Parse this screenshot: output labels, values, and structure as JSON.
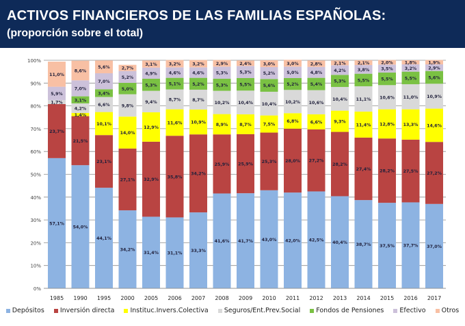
{
  "header": {
    "title": "ACTIVOS FINANCIEROS DE LAS FAMILIAS ESPAÑOLAS:",
    "subtitle": "(proporción sobre el total)"
  },
  "chart_data": {
    "type": "bar",
    "stacked": true,
    "normalized": true,
    "title": "ACTIVOS FINANCIEROS DE LAS FAMILIAS ESPAÑOLAS:",
    "subtitle": "(proporción sobre el total)",
    "xlabel": "",
    "ylabel": "",
    "ylim": [
      0,
      100
    ],
    "yticks": [
      "0%",
      "10%",
      "20%",
      "30%",
      "40%",
      "50%",
      "60%",
      "70%",
      "80%",
      "90%",
      "100%"
    ],
    "grid": true,
    "legend_position": "bottom",
    "categories": [
      "1985",
      "1990",
      "1995",
      "2000",
      "2005",
      "2006",
      "2007",
      "2008",
      "2009",
      "2010",
      "2011",
      "2012",
      "2013",
      "2014",
      "2015",
      "2016",
      "2017"
    ],
    "series": [
      {
        "name": "Depósitos",
        "color": "#8db3e2",
        "values": [
          57.1,
          54.0,
          44.1,
          34.2,
          31.4,
          31.1,
          33.3,
          41.6,
          41.7,
          43.0,
          42.0,
          42.5,
          40.4,
          38.7,
          37.5,
          37.7,
          37.0
        ]
      },
      {
        "name": "Inversión directa",
        "color": "#b94442",
        "values": [
          23.7,
          21.5,
          23.1,
          27.1,
          32.9,
          35.8,
          34.2,
          25.9,
          25.9,
          25.3,
          28.0,
          27.2,
          28.2,
          27.4,
          28.2,
          27.5,
          27.2
        ]
      },
      {
        "name": "Instituc.Invers.Colectiva",
        "color": "#ffff00",
        "values": [
          0,
          1.4,
          10.1,
          14.0,
          12.9,
          11.6,
          10.9,
          8.9,
          8.7,
          7.5,
          6.8,
          6.6,
          9.3,
          11.4,
          12.8,
          13.3,
          14.6
        ]
      },
      {
        "name": "Seguros/Ent.Prev.Social",
        "color": "#d9d9d9",
        "values": [
          1.7,
          4.2,
          6.6,
          9.8,
          9.4,
          8.7,
          8.7,
          10.2,
          10.4,
          10.4,
          10.2,
          10.6,
          10.4,
          11.1,
          10.6,
          11.0,
          10.9
        ]
      },
      {
        "name": "Fondos de Pensiones",
        "color": "#7ac143",
        "values": [
          0,
          3.1,
          3.4,
          5.0,
          5.3,
          5.1,
          5.2,
          5.3,
          5.5,
          5.6,
          5.2,
          5.4,
          5.3,
          5.5,
          5.5,
          5.5,
          5.6
        ]
      },
      {
        "name": "Efectivo",
        "color": "#ccc1da",
        "values": [
          5.9,
          7.0,
          7.0,
          5.2,
          4.9,
          4.6,
          4.6,
          5.3,
          5.3,
          5.2,
          5.0,
          4.8,
          4.2,
          3.8,
          3.5,
          3.2,
          2.9
        ]
      },
      {
        "name": "Otros",
        "color": "#f8c0a4",
        "values": [
          11.0,
          8.6,
          5.6,
          2.7,
          3.1,
          3.2,
          3.2,
          2.9,
          2.4,
          3.0,
          3.0,
          2.8,
          2.1,
          2.1,
          2.0,
          1.8,
          1.9
        ]
      }
    ]
  }
}
